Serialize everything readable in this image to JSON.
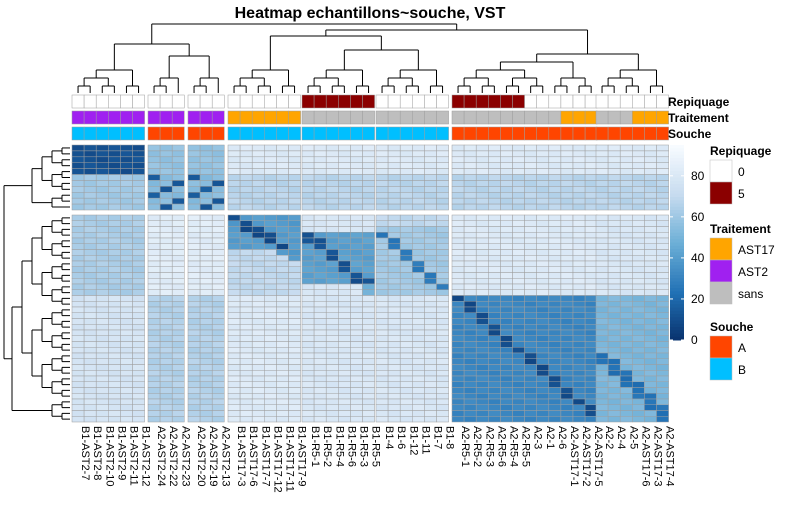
{
  "chart_data": {
    "type": "heatmap",
    "title": "Heatmap echantillons~souche, VST",
    "columns": [
      "B1-AST2-7",
      "B1-AST2-8",
      "B1-AST2-10",
      "B1-AST2-9",
      "B1-AST2-11",
      "B1-AST2-12",
      "A2-AST2-24",
      "A2-AST2-22",
      "A2-AST2-23",
      "A2-AST2-20",
      "A2-AST2-19",
      "A2-AST2-13",
      "B1-AST17-3",
      "B1-AST17-6",
      "B1-AST17-7",
      "B1-AST17-12",
      "B1-AST17-11",
      "B1-AST17-9",
      "B1-R5-1",
      "B1-R5-2",
      "B1-R5-4",
      "B1-R5-6",
      "B1-R5-3",
      "B1-R5-5",
      "B1-4",
      "B1-6",
      "B1-12",
      "B1-11",
      "B1-7",
      "B1-8",
      "A2-R5-1",
      "A2-R5-2",
      "A2-R5-3",
      "A2-R5-6",
      "A2-R5-4",
      "A2-R5-5",
      "A2-3",
      "A2-1",
      "A2-6",
      "A2-AST17-1",
      "A2-AST17-2",
      "A2-AST17-5",
      "A2-2",
      "A2-4",
      "A2-5",
      "A2-AST17-6",
      "A2-AST17-3",
      "A2-AST17-4"
    ],
    "column_splits": [
      6,
      3,
      3,
      6,
      6,
      6,
      12,
      6
    ],
    "row_splits": [
      11,
      36
    ],
    "annotations": [
      {
        "name": "Repiquage",
        "values": [
          "0",
          "0",
          "0",
          "0",
          "0",
          "0",
          "0",
          "0",
          "0",
          "0",
          "0",
          "0",
          "0",
          "0",
          "0",
          "0",
          "0",
          "0",
          "5",
          "5",
          "5",
          "5",
          "5",
          "5",
          "0",
          "0",
          "0",
          "0",
          "0",
          "0",
          "5",
          "5",
          "5",
          "5",
          "5",
          "5",
          "0",
          "0",
          "0",
          "0",
          "0",
          "0",
          "0",
          "0",
          "0",
          "0",
          "0",
          "0"
        ]
      },
      {
        "name": "Traitement",
        "values": [
          "AST2",
          "AST2",
          "AST2",
          "AST2",
          "AST2",
          "AST2",
          "AST2",
          "AST2",
          "AST2",
          "AST2",
          "AST2",
          "AST2",
          "AST17",
          "AST17",
          "AST17",
          "AST17",
          "AST17",
          "AST17",
          "sans",
          "sans",
          "sans",
          "sans",
          "sans",
          "sans",
          "sans",
          "sans",
          "sans",
          "sans",
          "sans",
          "sans",
          "sans",
          "sans",
          "sans",
          "sans",
          "sans",
          "sans",
          "sans",
          "sans",
          "sans",
          "AST17",
          "AST17",
          "AST17",
          "sans",
          "sans",
          "sans",
          "AST17",
          "AST17",
          "AST17"
        ]
      },
      {
        "name": "Souche",
        "values": [
          "B",
          "B",
          "B",
          "B",
          "B",
          "B",
          "A",
          "A",
          "A",
          "A",
          "A",
          "A",
          "B",
          "B",
          "B",
          "B",
          "B",
          "B",
          "B",
          "B",
          "B",
          "B",
          "B",
          "B",
          "B",
          "B",
          "B",
          "B",
          "B",
          "B",
          "A",
          "A",
          "A",
          "A",
          "A",
          "A",
          "A",
          "A",
          "A",
          "A",
          "A",
          "A",
          "A",
          "A",
          "A",
          "A",
          "A",
          "A"
        ]
      }
    ],
    "legend": {
      "placement": "right",
      "colorbar": {
        "min": 0,
        "max": 95,
        "ticks": [
          0,
          20,
          40,
          60,
          80
        ]
      },
      "groups": [
        {
          "title": "Repiquage",
          "items": [
            {
              "label": "0",
              "color": "#ffffff"
            },
            {
              "label": "5",
              "color": "#8b0000"
            }
          ]
        },
        {
          "title": "Traitement",
          "items": [
            {
              "label": "AST17",
              "color": "#ffa500"
            },
            {
              "label": "AST2",
              "color": "#a020f0"
            },
            {
              "label": "sans",
              "color": "#bebebe"
            }
          ]
        },
        {
          "title": "Souche",
          "items": [
            {
              "label": "A",
              "color": "#ff4500"
            },
            {
              "label": "B",
              "color": "#00bfff"
            }
          ]
        }
      ]
    },
    "colorscale": {
      "low": "#08306b",
      "high": "#f7fbff"
    },
    "grid": true,
    "xlabel": "",
    "ylabel": ""
  }
}
